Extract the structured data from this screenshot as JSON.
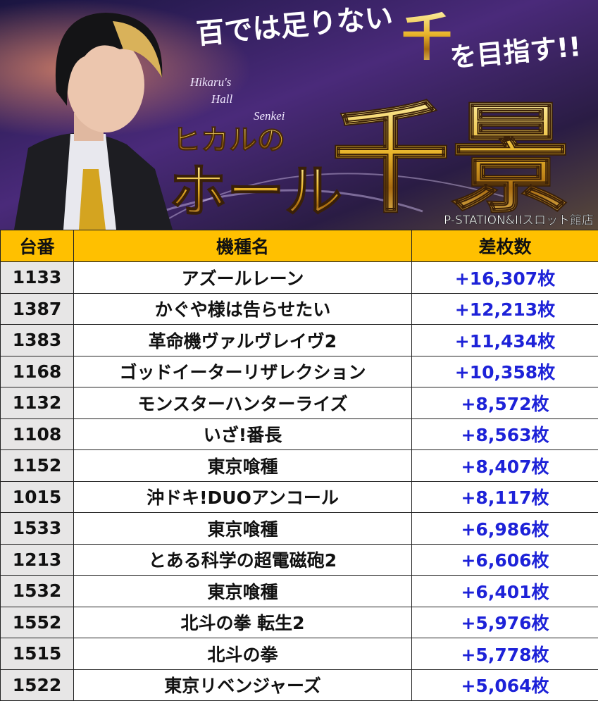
{
  "banner": {
    "tagline_1": "百では足りない",
    "tagline_accent": "千",
    "tagline_2": "を目指す!!",
    "subtitle_en_1": "Hikaru's",
    "subtitle_en_2": "Hall",
    "subtitle_en_3": "Senkei",
    "title_name": "ヒカルの",
    "title_main": "ホール",
    "title_kanji": "千景",
    "store_name": "P-STATION&IIスロット館店"
  },
  "table": {
    "header": [
      "台番",
      "機種名",
      "差枚数"
    ],
    "rows": [
      [
        "1133",
        "アズールレーン",
        "+16,307枚"
      ],
      [
        "1387",
        "かぐや様は告らせたい",
        "+12,213枚"
      ],
      [
        "1383",
        "革命機ヴァルヴレイヴ2",
        "+11,434枚"
      ],
      [
        "1168",
        "ゴッドイーターリザレクション",
        "+10,358枚"
      ],
      [
        "1132",
        "モンスターハンターライズ",
        "+8,572枚"
      ],
      [
        "1108",
        "いざ!番長",
        "+8,563枚"
      ],
      [
        "1152",
        "東京喰種",
        "+8,407枚"
      ],
      [
        "1015",
        "沖ドキ!DUOアンコール",
        "+8,117枚"
      ],
      [
        "1533",
        "東京喰種",
        "+6,986枚"
      ],
      [
        "1213",
        "とある科学の超電磁砲2",
        "+6,606枚"
      ],
      [
        "1532",
        "東京喰種",
        "+6,401枚"
      ],
      [
        "1552",
        "北斗の拳 転生2",
        "+5,976枚"
      ],
      [
        "1515",
        "北斗の拳",
        "+5,778枚"
      ],
      [
        "1522",
        "東京リベンジャーズ",
        "+5,064枚"
      ]
    ]
  }
}
